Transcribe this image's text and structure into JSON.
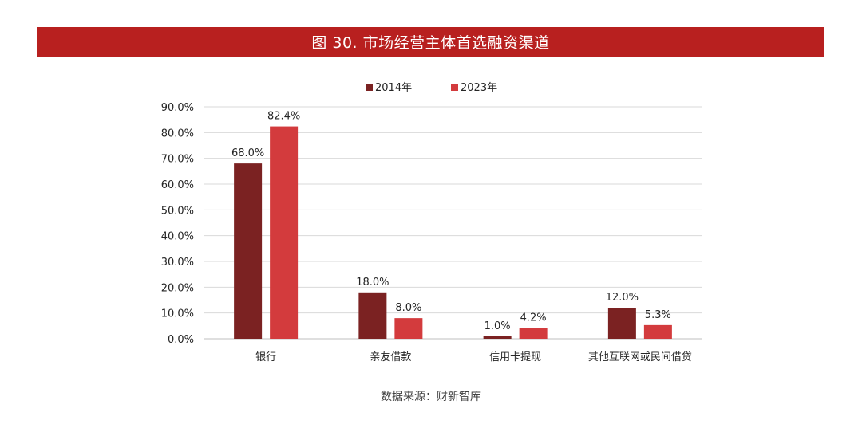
{
  "header": {
    "title": "图 30. 市场经营主体首选融资渠道"
  },
  "footer": {
    "source": "数据来源：财新智库"
  },
  "colors": {
    "banner": "#b8201f",
    "series_2014": "#7b2222",
    "series_2023": "#d33b3d"
  },
  "chart_data": {
    "type": "bar",
    "title": "",
    "xlabel": "",
    "ylabel": "",
    "categories": [
      "银行",
      "亲友借款",
      "信用卡提现",
      "其他互联网或民间借贷"
    ],
    "series": [
      {
        "name": "2014年",
        "values": [
          68.0,
          18.0,
          1.0,
          12.0
        ],
        "labels": [
          "68.0%",
          "18.0%",
          "1.0%",
          "12.0%"
        ]
      },
      {
        "name": "2023年",
        "values": [
          82.4,
          8.0,
          4.2,
          5.3
        ],
        "labels": [
          "82.4%",
          "8.0%",
          "4.2%",
          "5.3%"
        ]
      }
    ],
    "ylim": [
      0,
      90
    ],
    "yticks": [
      "0.0%",
      "10.0%",
      "20.0%",
      "30.0%",
      "40.0%",
      "50.0%",
      "60.0%",
      "70.0%",
      "80.0%",
      "90.0%"
    ],
    "grid": true,
    "legend_position": "top-center"
  }
}
